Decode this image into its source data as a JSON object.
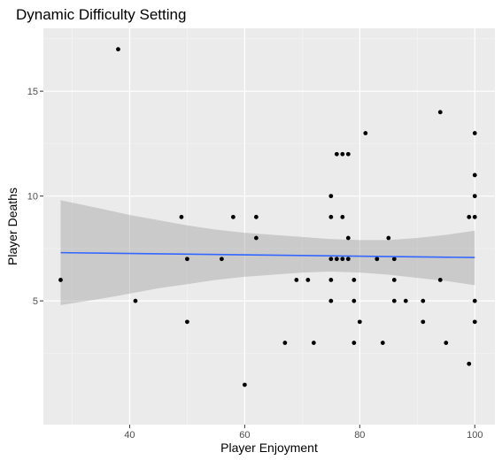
{
  "chart_data": {
    "type": "scatter",
    "title": "Dynamic Difficulty Setting",
    "xlabel": "Player Enjoyment",
    "ylabel": "Player Deaths",
    "xlim": [
      25,
      103.5
    ],
    "ylim": [
      -0.9,
      18.0
    ],
    "x_ticks": [
      40,
      60,
      80,
      100
    ],
    "y_ticks": [
      5,
      10,
      15
    ],
    "x_minor_ticks": [
      30,
      50,
      70,
      90
    ],
    "y_minor_ticks": [
      2.5,
      7.5,
      12.5,
      17.5
    ],
    "grid": true,
    "legend": "none",
    "colors": {
      "panel_background": "#ebebeb",
      "grid_major": "#ffffff",
      "grid_minor": "#f5f5f5",
      "points": "#000000",
      "fit_line": "#3366ff",
      "confidence_band": "#999999"
    },
    "points": [
      {
        "x": 28,
        "y": 6
      },
      {
        "x": 38,
        "y": 17
      },
      {
        "x": 41,
        "y": 5
      },
      {
        "x": 49,
        "y": 9
      },
      {
        "x": 50,
        "y": 7
      },
      {
        "x": 50,
        "y": 4
      },
      {
        "x": 56,
        "y": 7
      },
      {
        "x": 58,
        "y": 9
      },
      {
        "x": 60,
        "y": 1
      },
      {
        "x": 62,
        "y": 9
      },
      {
        "x": 62,
        "y": 8
      },
      {
        "x": 67,
        "y": 3
      },
      {
        "x": 69,
        "y": 6
      },
      {
        "x": 71,
        "y": 6
      },
      {
        "x": 72,
        "y": 3
      },
      {
        "x": 75,
        "y": 10
      },
      {
        "x": 75,
        "y": 9
      },
      {
        "x": 75,
        "y": 7
      },
      {
        "x": 75,
        "y": 6
      },
      {
        "x": 75,
        "y": 5
      },
      {
        "x": 76,
        "y": 12
      },
      {
        "x": 76,
        "y": 7
      },
      {
        "x": 77,
        "y": 12
      },
      {
        "x": 77,
        "y": 9
      },
      {
        "x": 77,
        "y": 7
      },
      {
        "x": 78,
        "y": 12
      },
      {
        "x": 78,
        "y": 8
      },
      {
        "x": 78,
        "y": 7
      },
      {
        "x": 79,
        "y": 6
      },
      {
        "x": 79,
        "y": 5
      },
      {
        "x": 79,
        "y": 3
      },
      {
        "x": 80,
        "y": 4
      },
      {
        "x": 81,
        "y": 13
      },
      {
        "x": 83,
        "y": 7
      },
      {
        "x": 84,
        "y": 3
      },
      {
        "x": 85,
        "y": 8
      },
      {
        "x": 86,
        "y": 7
      },
      {
        "x": 86,
        "y": 6
      },
      {
        "x": 86,
        "y": 5
      },
      {
        "x": 88,
        "y": 5
      },
      {
        "x": 91,
        "y": 5
      },
      {
        "x": 91,
        "y": 4
      },
      {
        "x": 94,
        "y": 14
      },
      {
        "x": 94,
        "y": 6
      },
      {
        "x": 95,
        "y": 3
      },
      {
        "x": 99,
        "y": 9
      },
      {
        "x": 99,
        "y": 2
      },
      {
        "x": 100,
        "y": 13
      },
      {
        "x": 100,
        "y": 11
      },
      {
        "x": 100,
        "y": 10
      },
      {
        "x": 100,
        "y": 9
      },
      {
        "x": 100,
        "y": 5
      },
      {
        "x": 100,
        "y": 4
      }
    ],
    "fit_line": {
      "x": [
        28,
        100
      ],
      "y": [
        7.3,
        7.07
      ]
    },
    "confidence_band": {
      "x": [
        28,
        35,
        40,
        45,
        50,
        55,
        60,
        65,
        70,
        75,
        80,
        85,
        90,
        95,
        100
      ],
      "upper": [
        9.8,
        9.4,
        9.1,
        8.85,
        8.6,
        8.4,
        8.25,
        8.15,
        8.05,
        7.95,
        7.9,
        7.9,
        8.0,
        8.15,
        8.35
      ],
      "lower": [
        4.8,
        5.1,
        5.35,
        5.6,
        5.8,
        6.0,
        6.15,
        6.25,
        6.35,
        6.4,
        6.35,
        6.25,
        6.1,
        5.95,
        5.75
      ]
    }
  }
}
